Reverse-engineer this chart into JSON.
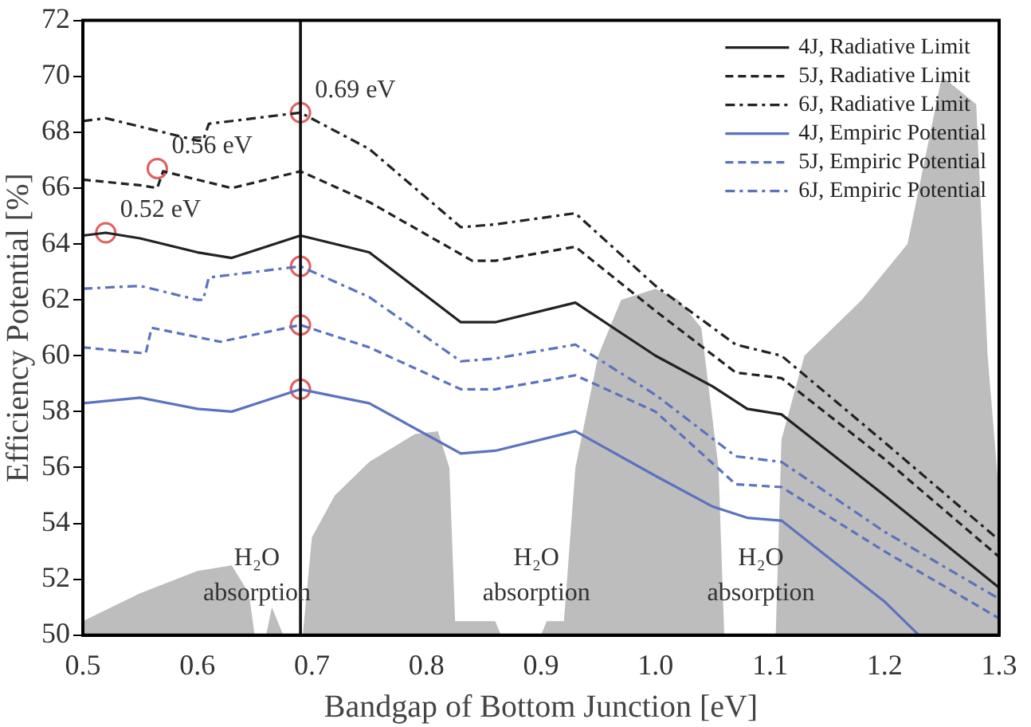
{
  "chart_data": {
    "type": "line",
    "xlabel": "Bandgap of Bottom Junction [eV]",
    "ylabel": "Efficiency Potential [%]",
    "xlim": [
      0.5,
      1.3
    ],
    "xticks": [
      0.5,
      0.6,
      0.7,
      0.8,
      0.9,
      {
        "value": 1,
        "label": "1.0"
      },
      1.1,
      1.2,
      1.3
    ],
    "ylim": [
      50,
      72
    ],
    "yticks": [
      50,
      52,
      54,
      56,
      58,
      60,
      62,
      64,
      66,
      68,
      70,
      72
    ],
    "grid": false,
    "legend": "top right",
    "marker": "none",
    "series": [
      {
        "name": "4J, Radiative Limit",
        "color": "#222222",
        "line_style": "solid",
        "x": [
          0.5,
          0.52,
          0.55,
          0.6,
          0.63,
          0.69,
          0.75,
          0.83,
          0.86,
          0.93,
          1.0,
          1.05,
          1.08,
          1.11,
          1.2,
          1.3
        ],
        "values": [
          64.3,
          64.4,
          64.2,
          63.7,
          63.5,
          64.3,
          63.7,
          61.2,
          61.2,
          61.9,
          60.0,
          58.9,
          58.1,
          57.9,
          55.0,
          51.7
        ]
      },
      {
        "name": "5J, Radiative Limit",
        "color": "#222222",
        "line_style": "dashed",
        "x": [
          0.5,
          0.55,
          0.565,
          0.57,
          0.63,
          0.69,
          0.75,
          0.84,
          0.86,
          0.93,
          1.0,
          1.07,
          1.11,
          1.2,
          1.3
        ],
        "values": [
          66.3,
          66.1,
          66.0,
          66.6,
          66.0,
          66.6,
          65.5,
          63.4,
          63.4,
          63.9,
          61.6,
          59.4,
          59.2,
          56.3,
          52.8
        ]
      },
      {
        "name": "6J, Radiative Limit",
        "color": "#222222",
        "line_style": "dashdot",
        "x": [
          0.5,
          0.52,
          0.6,
          0.605,
          0.61,
          0.69,
          0.75,
          0.83,
          0.86,
          0.93,
          1.0,
          1.07,
          1.11,
          1.2,
          1.3
        ],
        "values": [
          68.4,
          68.5,
          67.7,
          67.7,
          68.3,
          68.7,
          67.4,
          64.6,
          64.7,
          65.1,
          62.5,
          60.4,
          60.0,
          56.9,
          53.4
        ]
      },
      {
        "name": "4J, Empiric Potential",
        "color": "#5b72c0",
        "line_style": "solid",
        "x": [
          0.5,
          0.55,
          0.6,
          0.63,
          0.69,
          0.75,
          0.83,
          0.86,
          0.93,
          1.0,
          1.05,
          1.08,
          1.11,
          1.2,
          1.23
        ],
        "values": [
          58.3,
          58.5,
          58.1,
          58.0,
          58.8,
          58.3,
          56.5,
          56.6,
          57.3,
          55.7,
          54.6,
          54.2,
          54.1,
          51.2,
          50.0
        ]
      },
      {
        "name": "5J, Empiric Potential",
        "color": "#5b72c0",
        "line_style": "dashed",
        "x": [
          0.5,
          0.55,
          0.555,
          0.56,
          0.62,
          0.69,
          0.75,
          0.83,
          0.86,
          0.93,
          1.0,
          1.07,
          1.11,
          1.2,
          1.3
        ],
        "values": [
          60.3,
          60.1,
          60.1,
          61.0,
          60.5,
          61.1,
          60.3,
          58.8,
          58.8,
          59.3,
          58.0,
          55.4,
          55.3,
          53.0,
          50.6
        ]
      },
      {
        "name": "6J, Empiric Potential",
        "color": "#5b72c0",
        "line_style": "dashdot",
        "x": [
          0.5,
          0.55,
          0.6,
          0.605,
          0.61,
          0.69,
          0.75,
          0.83,
          0.86,
          0.93,
          1.0,
          1.07,
          1.11,
          1.2,
          1.3
        ],
        "values": [
          62.4,
          62.5,
          62.0,
          62.0,
          62.8,
          63.2,
          62.1,
          59.8,
          59.9,
          60.4,
          58.6,
          56.4,
          56.2,
          53.7,
          51.3
        ]
      },
      {
        "type": "scatter",
        "marker": "circle",
        "color": "#e06060",
        "x": [
          0.52,
          0.565,
          0.69,
          0.69,
          0.69,
          0.69
        ],
        "values": [
          64.4,
          66.7,
          68.7,
          63.2,
          61.1,
          58.8
        ]
      }
    ],
    "ref_lines": [
      {
        "axis": "x",
        "value": 0.69,
        "color": "#111111"
      }
    ],
    "annotations": [
      {
        "text": "0.52 eV",
        "x": 0.52,
        "y": 64.4
      },
      {
        "text": "0.56 eV",
        "x": 0.565,
        "y": 66.7
      },
      {
        "text": "0.69 eV",
        "x": 0.69,
        "y": 68.7
      },
      "H₂O",
      "absorption",
      "H₂O",
      "absorption",
      "H₂O",
      "absorption"
    ]
  }
}
